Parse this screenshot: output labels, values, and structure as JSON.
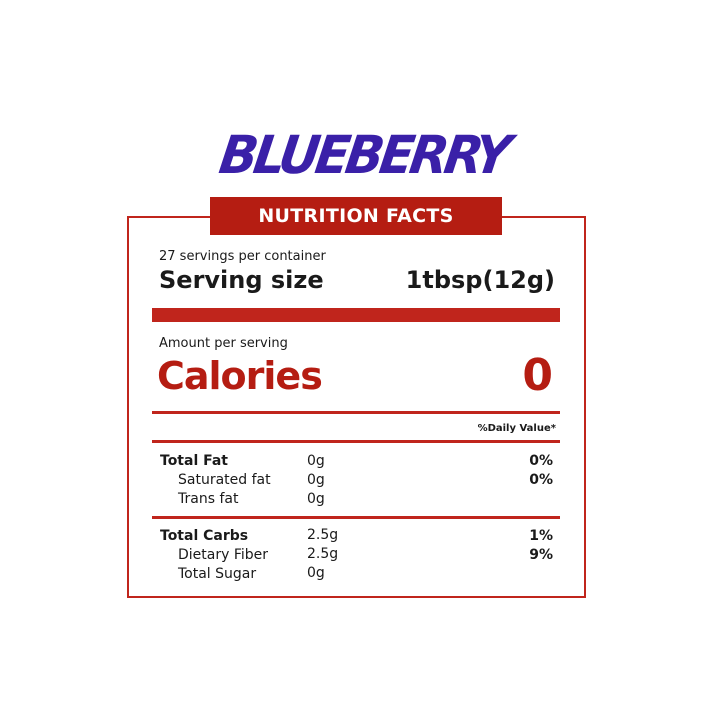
{
  "brand": "BLUEBERRY",
  "banner": "NUTRITION FACTS",
  "servings_per_container": "27 servings per container",
  "serving_size_label": "Serving size",
  "serving_size_value": "1tbsp(12g)",
  "amount_per_serving": "Amount per serving",
  "calories_label": "Calories",
  "calories_value": "0",
  "daily_value_header": "%Daily Value*",
  "colors": {
    "brand": "#3a20a8",
    "accent": "#b51d12"
  },
  "nutrients": [
    {
      "name": "Total Fat",
      "amount": "0g",
      "dv": "0%"
    },
    {
      "name": "Saturated fat",
      "amount": "0g",
      "dv": "0%"
    },
    {
      "name": "Trans fat",
      "amount": "0g",
      "dv": ""
    },
    {
      "name": "Total Carbs",
      "amount": "2.5g",
      "dv": "1%"
    },
    {
      "name": "Dietary Fiber",
      "amount": "2.5g",
      "dv": "9%"
    },
    {
      "name": "Total Sugar",
      "amount": "0g",
      "dv": ""
    }
  ]
}
